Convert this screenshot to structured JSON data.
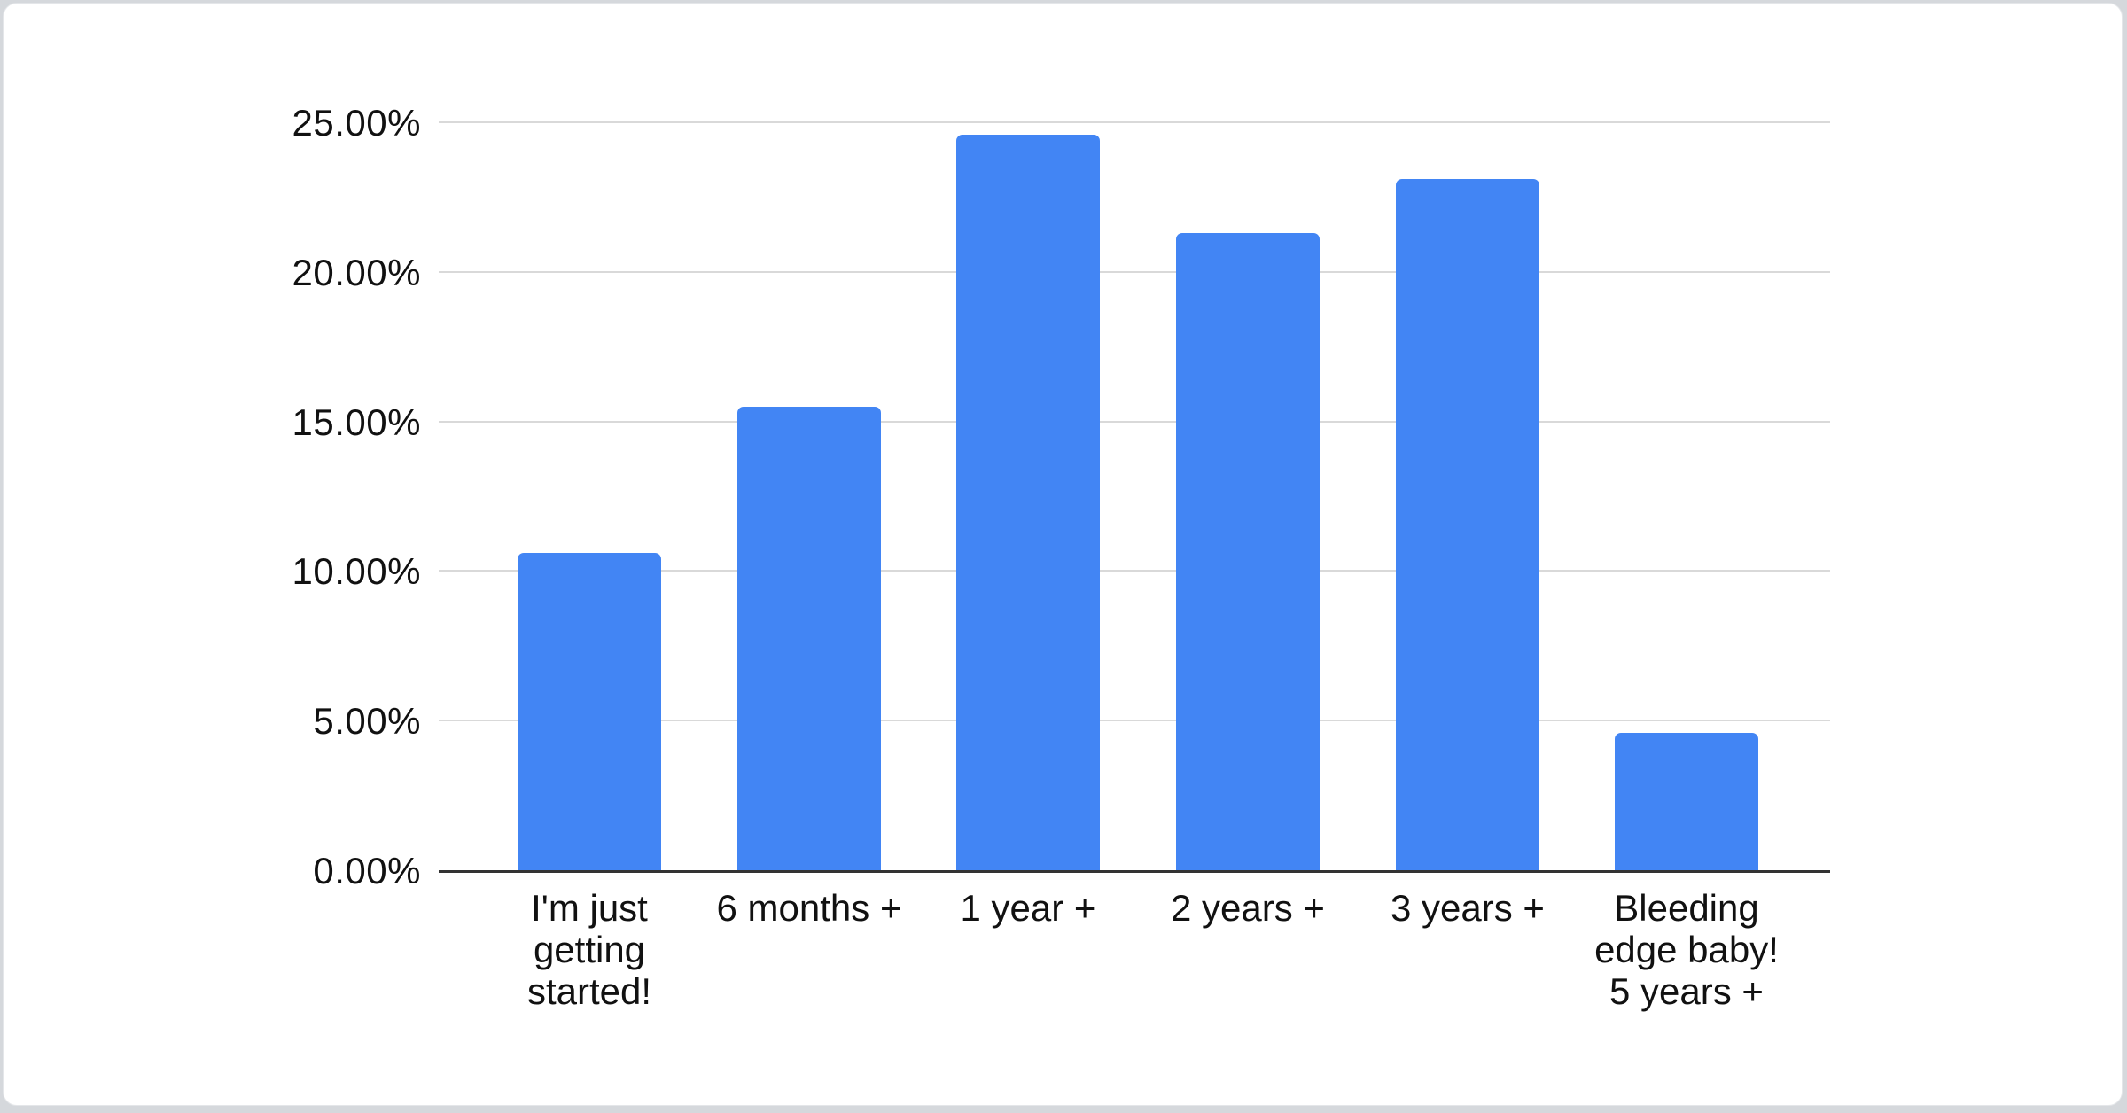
{
  "chart_data": {
    "type": "bar",
    "title": "",
    "xlabel": "",
    "ylabel": "",
    "categories": [
      "I'm just\ngetting\nstarted!",
      "6 months +",
      "1 year +",
      "2 years +",
      "3 years +",
      "Bleeding\nedge baby!\n5 years +"
    ],
    "values": [
      10.6,
      15.5,
      24.6,
      21.3,
      23.1,
      4.6
    ],
    "value_unit": "%",
    "y_ticks": [
      "0.00%",
      "5.00%",
      "10.00%",
      "15.00%",
      "20.00%",
      "25.00%"
    ],
    "y_tick_values": [
      0,
      5,
      10,
      15,
      20,
      25
    ],
    "ylim": [
      0,
      25
    ],
    "grid": true,
    "legend": "none",
    "colors": {
      "bar": "#4285F4",
      "gridline": "#D9D9D9",
      "axis_line": "#333333",
      "tick_text": "#111111",
      "card_background": "#FFFFFF",
      "page_background": "#D5D8DC"
    }
  }
}
